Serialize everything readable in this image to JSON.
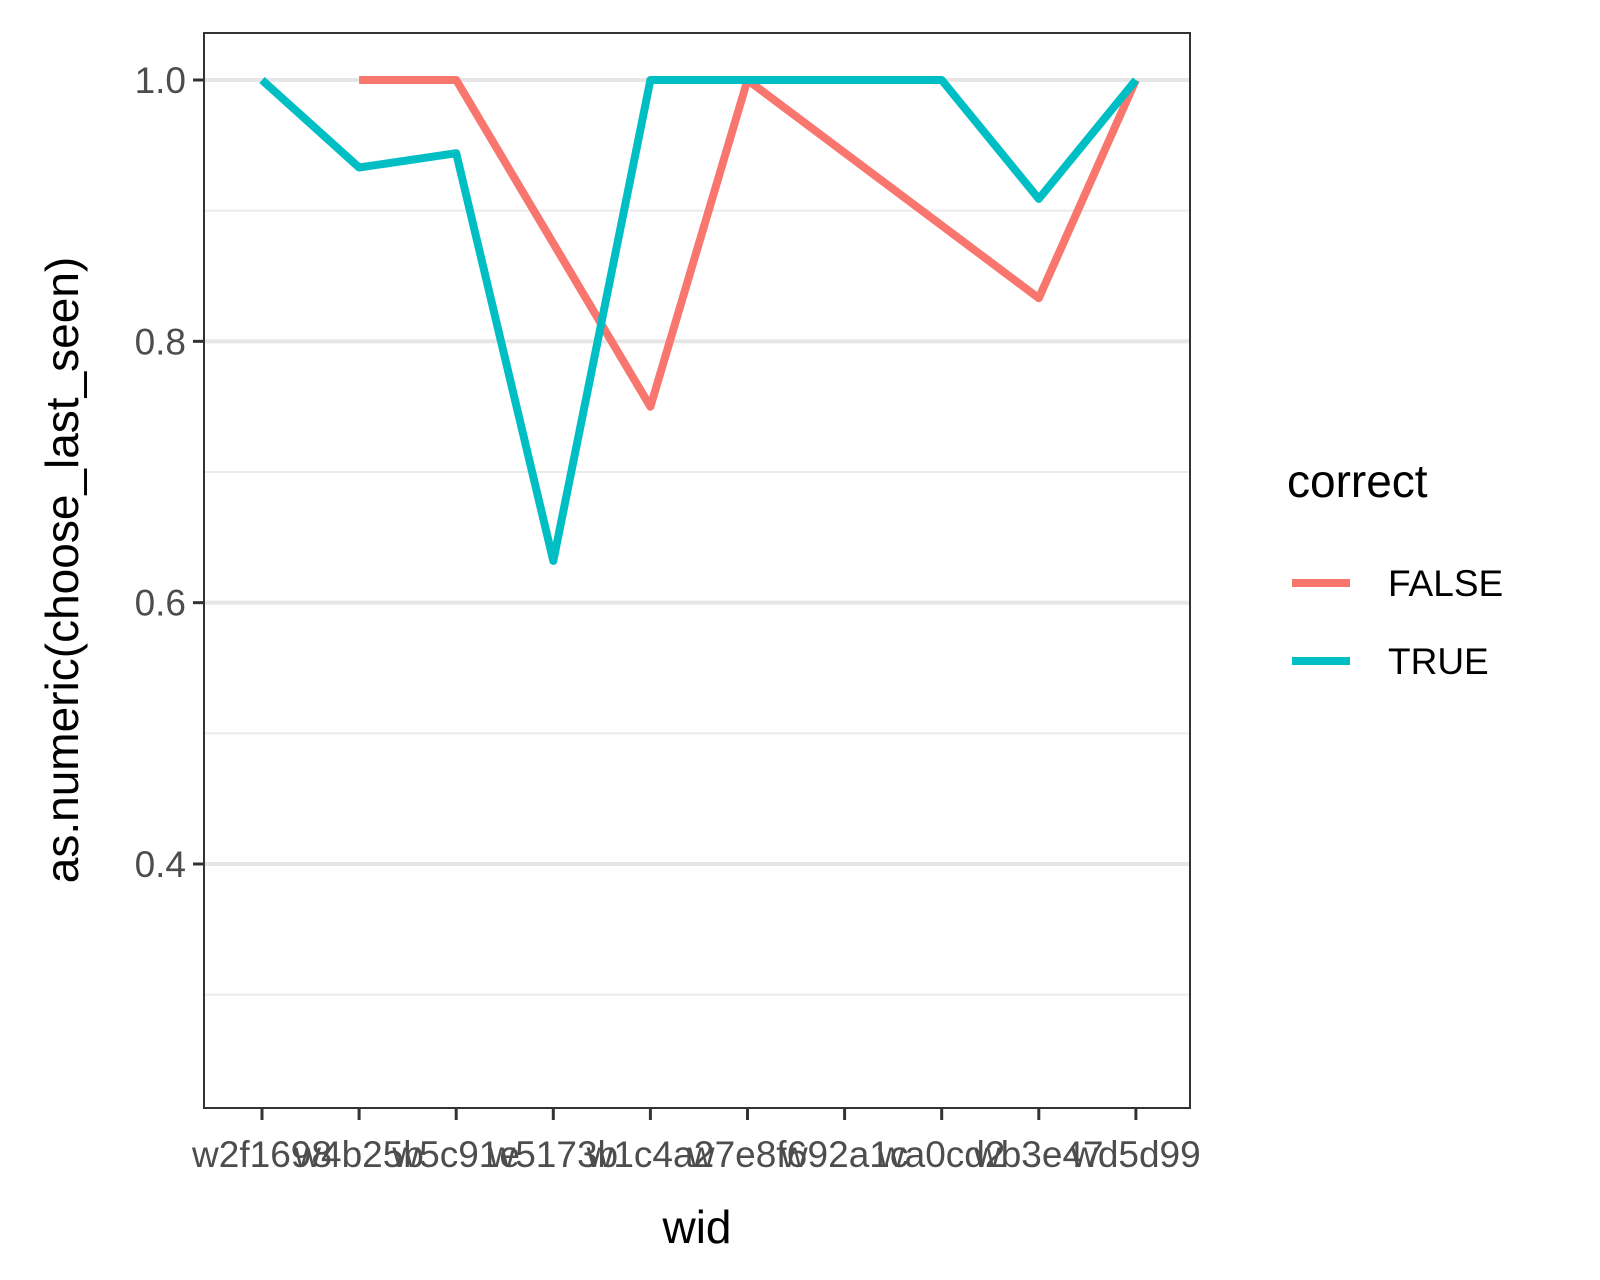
{
  "chart_data": {
    "type": "line",
    "xlabel": "wid",
    "ylabel": "as.numeric(choose_last_seen)",
    "categories": [
      "w2f1698",
      "w4b25b",
      "w5c91e",
      "w5173b",
      "w1c4a2",
      "w7e8f6",
      "w92a1c",
      "wa0cd2",
      "wb3e47",
      "wd5d99"
    ],
    "categories_note_visible": "x tick labels overlap in the original; rightmost label visibly reads ...d99",
    "ylim": [
      0.22,
      1.04
    ],
    "yticks": [
      0.4,
      0.6,
      0.8,
      1.0
    ],
    "ytick_labels": [
      "0.4",
      "0.6",
      "0.8",
      "1.0"
    ],
    "grid": true,
    "legend": {
      "title": "correct",
      "position": "right"
    },
    "series": [
      {
        "name": "FALSE",
        "color": "#F8766D",
        "values": [
          null,
          1.0,
          1.0,
          null,
          0.75,
          1.0,
          null,
          null,
          0.833,
          1.0
        ]
      },
      {
        "name": "TRUE",
        "color": "#00BFC4",
        "values": [
          1.0,
          0.933,
          0.944,
          0.632,
          1.0,
          1.0,
          1.0,
          1.0,
          0.909,
          1.0
        ]
      }
    ]
  }
}
